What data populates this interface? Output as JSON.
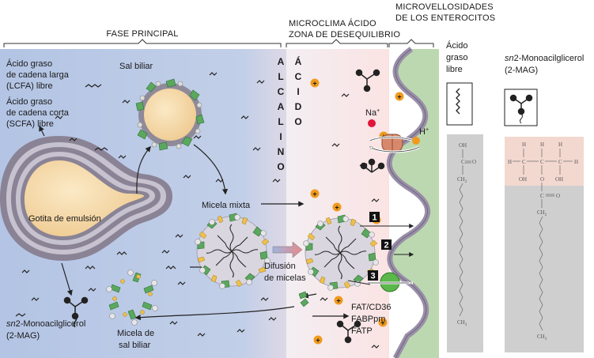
{
  "headers": {
    "main_phase": "FASE PRINCIPAL",
    "microclimate_line1": "MICROCLIMA ÁCIDO",
    "microclimate_line2": "ZONA DE DESEQUILIBRIO",
    "microvilli_line1": "MICROVELLOSIDADES",
    "microvilli_line2": "DE LOS ENTEROCITOS"
  },
  "vertical_labels": {
    "alkaline": [
      "A",
      "L",
      "C",
      "A",
      "L",
      "I",
      "N",
      "O"
    ],
    "acid": [
      "Á",
      "C",
      "I",
      "D",
      "O"
    ]
  },
  "labels": {
    "lcfa_line1": "Ácido graso",
    "lcfa_line2": "de cadena larga",
    "lcfa_line3": "(LCFA) libre",
    "scfa_line1": "Ácido graso",
    "scfa_line2": "de cadena corta",
    "scfa_line3": "(SCFA) libre",
    "bile_salt": "Sal biliar",
    "emulsion_droplet": "Gotita de emulsión",
    "mixed_micelle": "Micela mixta",
    "micelle_diffusion_line1": "Difusión",
    "micelle_diffusion_line2": "de micelas",
    "bile_salt_micelle_line1": "Micela de",
    "bile_salt_micelle_line2": "sal biliar",
    "sn2_mag_prefix": "sn",
    "sn2_mag_suffix": "2-Monoacilglicerol",
    "sn2_mag_line2": "(2-MAG)",
    "na_ion": "Na",
    "na_charge": "+",
    "h_ion": "H",
    "h_charge": "+",
    "transporters": [
      "FAT/CD36",
      "FABPpm",
      "FATP"
    ],
    "steps": [
      "1",
      "2",
      "3"
    ]
  },
  "right_panel": {
    "ffa_line1": "Ácido",
    "ffa_line2": "graso",
    "ffa_line3": "libre",
    "mag_prefix": "sn",
    "mag_suffix": "2-Monoacilglicerol",
    "mag_line2": "(2-MAG)",
    "ffa_struct": {
      "oh": "OH",
      "c": "C",
      "o": "O",
      "ch2": "CH",
      "ch2_sub": "2",
      "ch3": "CH",
      "ch3_sub": "3"
    },
    "mag_struct": {
      "h": "H",
      "c": "C",
      "oh": "OH",
      "o": "O",
      "ch2": "CH",
      "ch2_sub": "2",
      "ch3": "CH",
      "ch3_sub": "3"
    }
  },
  "colors": {
    "bulk_phase": "#b8c8e6",
    "acid_zone": "#fbe6e6",
    "membrane": "#9a8fa8",
    "cytoplasm": "#bcd8b0",
    "droplet": "#f6dcac",
    "bile_salt_green": "#5aa85e",
    "proton": "#f09a1e",
    "sodium": "#e0163a",
    "gray_panel": "#cfcfcf",
    "pink_panel": "#f3d8d0"
  }
}
